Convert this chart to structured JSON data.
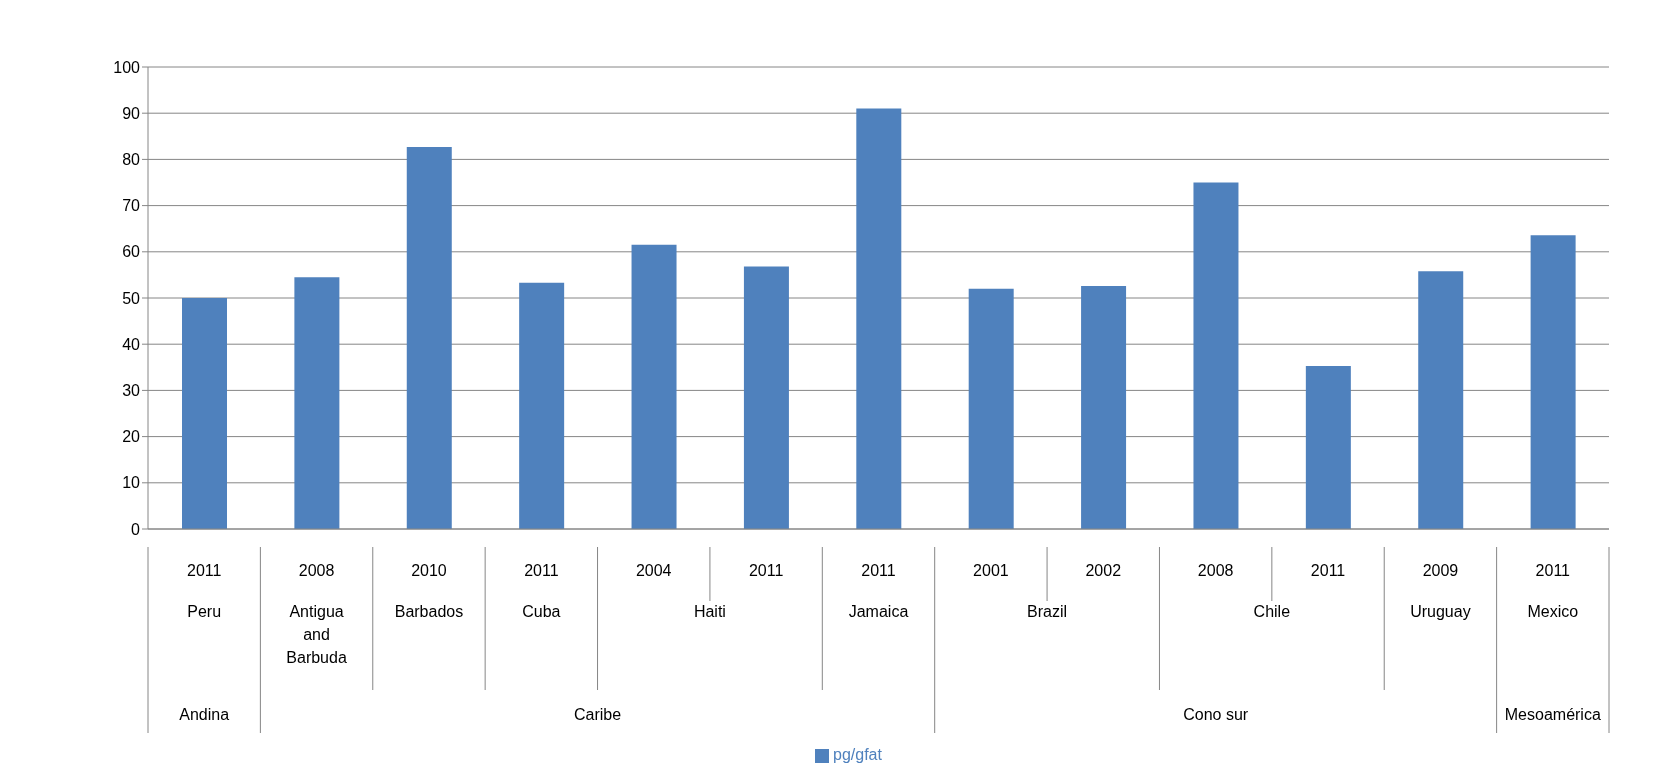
{
  "chart_data": {
    "type": "bar",
    "categories": [
      "2011",
      "2008",
      "2010",
      "2011",
      "2004",
      "2011",
      "2011",
      "2001",
      "2002",
      "2008",
      "2011",
      "2009",
      "2011"
    ],
    "series": [
      {
        "name": "pg/gfat",
        "color": "#4f81bd",
        "values": [
          50,
          54.5,
          82.7,
          53.3,
          61.5,
          56.8,
          91,
          52,
          52.6,
          75,
          35.3,
          55.8,
          63.6
        ]
      }
    ],
    "ylim": [
      0,
      100
    ],
    "yticks": [
      0,
      10,
      20,
      30,
      40,
      50,
      60,
      70,
      80,
      90,
      100
    ],
    "grid": "y",
    "legend": "bottom",
    "annotations": [
      "Peru",
      "Antigua and Barbuda",
      "Barbados",
      "Cuba",
      "Haiti",
      "Jamaica",
      "Brazil",
      "Chile",
      "Uruguay",
      "Mexico",
      "Andina",
      "Caribe",
      "Cono sur",
      "Mesoamérica"
    ]
  }
}
